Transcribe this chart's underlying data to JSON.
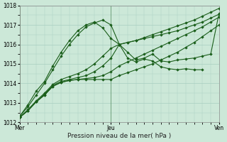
{
  "xlabel": "Pression niveau de la mer( hPa )",
  "ylim": [
    1012,
    1018
  ],
  "yticks": [
    1012,
    1013,
    1014,
    1015,
    1016,
    1017,
    1018
  ],
  "xtick_labels": [
    "Mer",
    "Jeu",
    "Ven"
  ],
  "bg_color": "#cce8d8",
  "grid_color": "#a8cfc0",
  "line_color": "#1a5e1a",
  "series": [
    {
      "x": [
        0,
        4,
        8,
        12,
        16,
        20,
        24,
        28,
        32,
        36,
        40,
        44,
        48,
        52,
        56,
        60,
        64,
        68,
        72,
        76,
        80,
        84,
        88,
        92,
        96
      ],
      "y": [
        1012.25,
        1012.6,
        1013.05,
        1013.4,
        1013.85,
        1014.05,
        1014.15,
        1014.2,
        1014.2,
        1014.2,
        1014.2,
        1014.2,
        1014.4,
        1014.55,
        1014.7,
        1014.85,
        1015.0,
        1015.2,
        1015.4,
        1015.6,
        1015.85,
        1016.1,
        1016.4,
        1016.7,
        1017.0
      ]
    },
    {
      "x": [
        0,
        4,
        8,
        12,
        16,
        20,
        24,
        28,
        32,
        36,
        40,
        44,
        48,
        52,
        56,
        60,
        64,
        68,
        72,
        76,
        80,
        84,
        88,
        92,
        96
      ],
      "y": [
        1012.25,
        1012.6,
        1013.05,
        1013.4,
        1013.85,
        1014.05,
        1014.15,
        1014.2,
        1014.25,
        1014.3,
        1014.4,
        1014.6,
        1014.9,
        1015.1,
        1015.3,
        1015.5,
        1015.7,
        1015.9,
        1016.1,
        1016.3,
        1016.5,
        1016.7,
        1016.9,
        1017.15,
        1017.4
      ]
    },
    {
      "x": [
        0,
        4,
        8,
        12,
        16,
        20,
        24,
        28,
        32,
        36,
        40,
        44,
        48,
        52,
        56,
        60,
        64,
        68,
        72,
        76,
        80,
        84,
        88,
        92,
        96
      ],
      "y": [
        1012.25,
        1012.6,
        1013.05,
        1013.45,
        1013.9,
        1014.1,
        1014.2,
        1014.3,
        1014.4,
        1014.6,
        1014.9,
        1015.3,
        1016.0,
        1016.1,
        1016.2,
        1016.3,
        1016.4,
        1016.5,
        1016.6,
        1016.7,
        1016.85,
        1017.0,
        1017.15,
        1017.35,
        1017.55
      ]
    },
    {
      "x": [
        0,
        4,
        8,
        12,
        16,
        20,
        24,
        28,
        32,
        36,
        40,
        44,
        48,
        52,
        56,
        60,
        64,
        68,
        72,
        76,
        80,
        84,
        88,
        92,
        96
      ],
      "y": [
        1012.25,
        1012.65,
        1013.1,
        1013.5,
        1013.95,
        1014.2,
        1014.35,
        1014.5,
        1014.7,
        1015.0,
        1015.4,
        1015.8,
        1016.0,
        1016.1,
        1016.2,
        1016.35,
        1016.5,
        1016.65,
        1016.8,
        1016.95,
        1017.1,
        1017.25,
        1017.45,
        1017.65,
        1017.85
      ]
    },
    {
      "x": [
        0,
        4,
        8,
        12,
        16,
        20,
        24,
        28,
        32,
        36,
        40,
        44,
        48,
        52,
        56,
        60,
        64,
        68,
        72,
        76,
        80,
        84,
        88
      ],
      "y": [
        1012.3,
        1012.8,
        1013.4,
        1014.0,
        1014.7,
        1015.4,
        1016.0,
        1016.5,
        1016.9,
        1017.1,
        1017.25,
        1017.0,
        1016.0,
        1015.3,
        1015.1,
        1015.25,
        1015.15,
        1014.85,
        1014.75,
        1014.7,
        1014.75,
        1014.7,
        1014.7
      ]
    },
    {
      "x": [
        0,
        4,
        8,
        12,
        16,
        20,
        24,
        28,
        32,
        36,
        40,
        44,
        48,
        52,
        56,
        60,
        64,
        68,
        72,
        76,
        80,
        84,
        88,
        92,
        96
      ],
      "y": [
        1012.3,
        1012.9,
        1013.6,
        1014.1,
        1014.9,
        1015.6,
        1016.2,
        1016.7,
        1017.0,
        1017.15,
        1016.85,
        1016.3,
        1016.0,
        1015.6,
        1015.2,
        1015.3,
        1015.5,
        1015.15,
        1015.1,
        1015.2,
        1015.25,
        1015.3,
        1015.4,
        1015.5,
        1017.6
      ]
    }
  ],
  "vline_positions": [
    0.135,
    0.46,
    0.94
  ],
  "marker": "D",
  "markersize": 1.8,
  "linewidth": 0.8
}
